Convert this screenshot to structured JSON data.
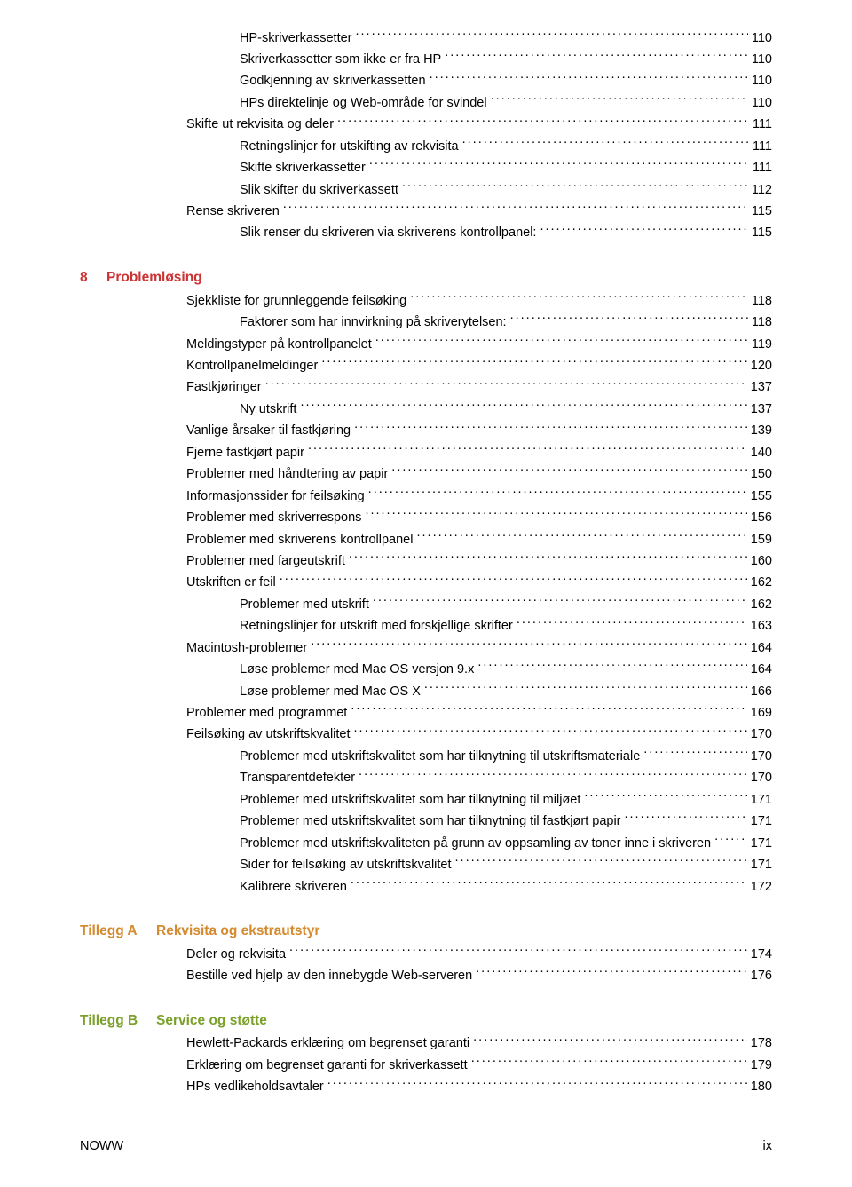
{
  "colors": {
    "heading8": "#cc3333",
    "headingA": "#d48a2e",
    "headingB": "#7aa02a",
    "text": "#000000",
    "background": "#ffffff"
  },
  "initial_block": [
    {
      "indent": 3,
      "label": "HP-skriverkassetter",
      "page": "110"
    },
    {
      "indent": 3,
      "label": "Skriverkassetter som ikke er fra HP",
      "page": "110"
    },
    {
      "indent": 3,
      "label": "Godkjenning av skriverkassetten",
      "page": "110"
    },
    {
      "indent": 3,
      "label": "HPs direktelinje og Web-område for svindel",
      "page": "110"
    },
    {
      "indent": 2,
      "label": "Skifte ut rekvisita og deler",
      "page": "111"
    },
    {
      "indent": 3,
      "label": "Retningslinjer for utskifting av rekvisita",
      "page": "111"
    },
    {
      "indent": 3,
      "label": "Skifte skriverkassetter",
      "page": "111"
    },
    {
      "indent": 3,
      "label": "Slik skifter du skriverkassett",
      "page": "112"
    },
    {
      "indent": 2,
      "label": "Rense skriveren",
      "page": "115"
    },
    {
      "indent": 3,
      "label": "Slik renser du skriveren via skriverens kontrollpanel:",
      "page": "115"
    }
  ],
  "sections": [
    {
      "prefix": "8",
      "title": "Problemløsing",
      "color": "#cc3333",
      "entries": [
        {
          "indent": 2,
          "label": "Sjekkliste for grunnleggende feilsøking",
          "page": "118"
        },
        {
          "indent": 3,
          "label": "Faktorer som har innvirkning på skriverytelsen:",
          "page": "118"
        },
        {
          "indent": 2,
          "label": "Meldingstyper på kontrollpanelet",
          "page": "119"
        },
        {
          "indent": 2,
          "label": "Kontrollpanelmeldinger",
          "page": "120"
        },
        {
          "indent": 2,
          "label": "Fastkjøringer",
          "page": "137"
        },
        {
          "indent": 3,
          "label": "Ny utskrift",
          "page": "137"
        },
        {
          "indent": 2,
          "label": "Vanlige årsaker til fastkjøring",
          "page": "139"
        },
        {
          "indent": 2,
          "label": "Fjerne fastkjørt papir",
          "page": "140"
        },
        {
          "indent": 2,
          "label": "Problemer med håndtering av papir",
          "page": "150"
        },
        {
          "indent": 2,
          "label": "Informasjonssider for feilsøking",
          "page": "155"
        },
        {
          "indent": 2,
          "label": "Problemer med skriverrespons",
          "page": "156"
        },
        {
          "indent": 2,
          "label": "Problemer med skriverens kontrollpanel",
          "page": "159"
        },
        {
          "indent": 2,
          "label": "Problemer med fargeutskrift",
          "page": "160"
        },
        {
          "indent": 2,
          "label": "Utskriften er feil",
          "page": "162"
        },
        {
          "indent": 3,
          "label": "Problemer med utskrift",
          "page": "162"
        },
        {
          "indent": 3,
          "label": "Retningslinjer for utskrift med forskjellige skrifter",
          "page": "163"
        },
        {
          "indent": 2,
          "label": "Macintosh-problemer",
          "page": "164"
        },
        {
          "indent": 3,
          "label": "Løse problemer med Mac OS versjon 9.x",
          "page": "164"
        },
        {
          "indent": 3,
          "label": "Løse problemer med Mac OS X",
          "page": "166"
        },
        {
          "indent": 2,
          "label": "Problemer med programmet",
          "page": "169"
        },
        {
          "indent": 2,
          "label": "Feilsøking av utskriftskvalitet",
          "page": "170"
        },
        {
          "indent": 3,
          "label": "Problemer med utskriftskvalitet som har tilknytning til utskriftsmateriale",
          "page": "170"
        },
        {
          "indent": 3,
          "label": "Transparentdefekter",
          "page": "170"
        },
        {
          "indent": 3,
          "label": "Problemer med utskriftskvalitet som har tilknytning til miljøet",
          "page": "171"
        },
        {
          "indent": 3,
          "label": "Problemer med utskriftskvalitet som har tilknytning til fastkjørt papir",
          "page": "171"
        },
        {
          "indent": 3,
          "label": "Problemer med utskriftskvaliteten på grunn av oppsamling av toner inne i skriveren",
          "page": "171"
        },
        {
          "indent": 3,
          "label": "Sider for feilsøking av utskriftskvalitet",
          "page": "171"
        },
        {
          "indent": 3,
          "label": "Kalibrere skriveren",
          "page": "172"
        }
      ]
    },
    {
      "prefix": "Tillegg A",
      "title": "Rekvisita og ekstrautstyr",
      "color": "#d48a2e",
      "entries": [
        {
          "indent": 2,
          "label": "Deler og rekvisita",
          "page": "174"
        },
        {
          "indent": 2,
          "label": "Bestille ved hjelp av den innebygde Web-serveren",
          "page": "176"
        }
      ]
    },
    {
      "prefix": "Tillegg B",
      "title": "Service og støtte",
      "color": "#7aa02a",
      "entries": [
        {
          "indent": 2,
          "label": "Hewlett-Packards erklæring om begrenset garanti",
          "page": "178"
        },
        {
          "indent": 2,
          "label": "Erklæring om begrenset garanti for skriverkassett",
          "page": "179"
        },
        {
          "indent": 2,
          "label": "HPs vedlikeholdsavtaler",
          "page": "180"
        }
      ]
    }
  ],
  "footer": {
    "left": "NOWW",
    "right": "ix"
  }
}
